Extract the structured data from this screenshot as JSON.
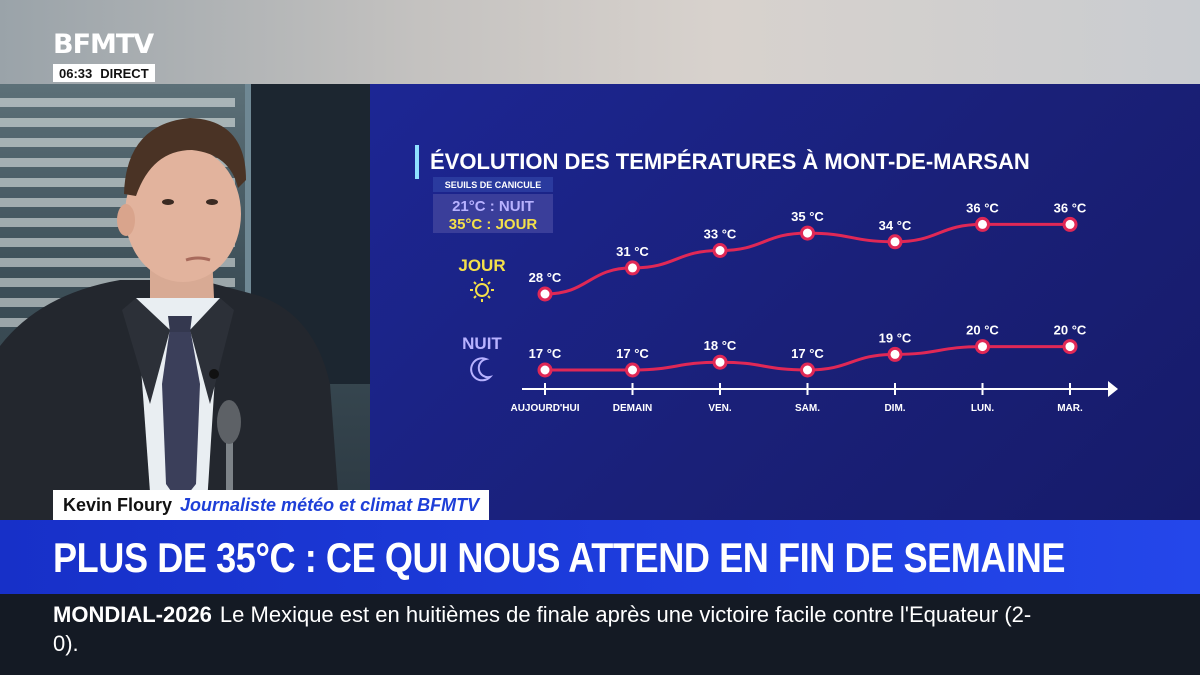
{
  "channel": {
    "logo": "BFMTV",
    "time": "06:33",
    "live_label": "DIRECT"
  },
  "presenter": {
    "name": "Kevin Floury",
    "role": "Journaliste météo et climat BFMTV"
  },
  "headline": "PLUS DE 35°C : CE QUI NOUS ATTEND EN FIN DE SEMAINE",
  "ticker": {
    "label": "MONDIAL-2026",
    "text": "Le Mexique est en huitièmes de finale après une victoire facile contre l'Equateur (2-0)."
  },
  "chart_data": {
    "type": "line",
    "title": "ÉVOLUTION DES TEMPÉRATURES À MONT-DE-MARSAN",
    "legend": {
      "heading": "SEUILS DE CANICULE",
      "night": "21°C : NUIT",
      "day": "35°C : JOUR"
    },
    "categories": [
      "AUJOURD'HUI",
      "DEMAIN",
      "VEN.",
      "SAM.",
      "DIM.",
      "LUN.",
      "MAR."
    ],
    "unit": "°C",
    "series": [
      {
        "name": "JOUR",
        "icon": "sun-icon",
        "values": [
          28,
          31,
          33,
          35,
          34,
          36,
          36
        ]
      },
      {
        "name": "NUIT",
        "icon": "moon-icon",
        "values": [
          17,
          17,
          18,
          17,
          19,
          20,
          20
        ]
      }
    ],
    "colors": {
      "line": "#e02856",
      "marker_fill": "#ffffff",
      "day_label": "#f4e04a",
      "night_label": "#b8b2ff",
      "background": "#1c2490"
    }
  }
}
